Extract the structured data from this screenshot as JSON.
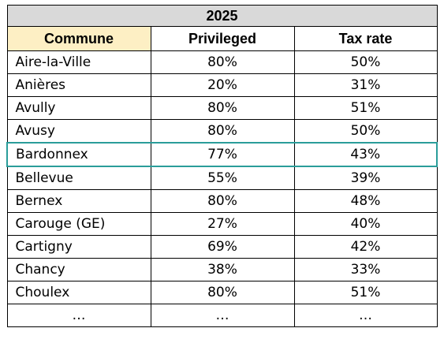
{
  "table": {
    "year": "2025",
    "headers": [
      "Commune",
      "Privileged",
      "Tax rate"
    ],
    "rows": [
      {
        "commune": "Aire-la-Ville",
        "privileged": "80%",
        "tax_rate": "50%"
      },
      {
        "commune": "Anières",
        "privileged": "20%",
        "tax_rate": "31%"
      },
      {
        "commune": "Avully",
        "privileged": "80%",
        "tax_rate": "51%"
      },
      {
        "commune": "Avusy",
        "privileged": "80%",
        "tax_rate": "50%"
      },
      {
        "commune": "Bardonnex",
        "privileged": "77%",
        "tax_rate": "43%"
      },
      {
        "commune": "Bellevue",
        "privileged": "55%",
        "tax_rate": "39%"
      },
      {
        "commune": "Bernex",
        "privileged": "80%",
        "tax_rate": "48%"
      },
      {
        "commune": "Carouge (GE)",
        "privileged": "27%",
        "tax_rate": "40%"
      },
      {
        "commune": "Cartigny",
        "privileged": "69%",
        "tax_rate": "42%"
      },
      {
        "commune": "Chancy",
        "privileged": "38%",
        "tax_rate": "33%"
      },
      {
        "commune": "Choulex",
        "privileged": "80%",
        "tax_rate": "51%"
      },
      {
        "commune": "…",
        "privileged": "…",
        "tax_rate": "…"
      }
    ],
    "highlight_color": "#2a9d9a",
    "header_fill": "#fdefc4",
    "year_fill": "#d9d9d9"
  }
}
